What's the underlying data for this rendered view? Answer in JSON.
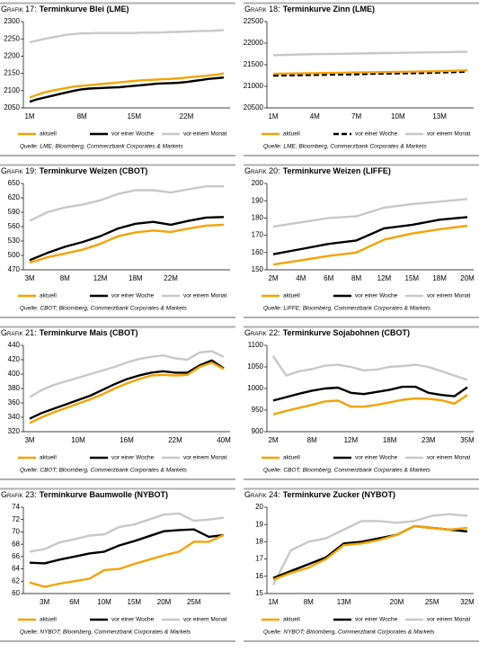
{
  "chart_data": [
    {
      "type": "line",
      "label": "Grafik 17:",
      "title": "Terminkurve Blei (LME)",
      "source": "Quelle: LME; Bloomberg, Commerzbank Corporates & Markets",
      "categories": [
        "1M",
        null,
        null,
        null,
        null,
        null,
        null,
        "8M",
        null,
        null,
        null,
        null,
        null,
        null,
        "15M",
        null,
        null,
        null,
        null,
        null,
        null,
        "22M",
        null,
        null,
        null,
        null,
        null
      ],
      "series": [
        {
          "name": "aktuell",
          "color": "#f5a300",
          "values": [
            2080,
            2088,
            2095,
            2100,
            2104,
            2108,
            2112,
            2114,
            2116,
            2118,
            2120,
            2122,
            2124,
            2126,
            2128,
            2130,
            2131,
            2132,
            2133,
            2134,
            2136,
            2138,
            2140,
            2142,
            2144,
            2146,
            2150
          ]
        },
        {
          "name": "vor einer Woche",
          "color": "#000000",
          "values": [
            2068,
            2075,
            2080,
            2085,
            2090,
            2095,
            2100,
            2104,
            2106,
            2107,
            2108,
            2109,
            2110,
            2112,
            2114,
            2116,
            2118,
            2120,
            2121,
            2122,
            2123,
            2125,
            2128,
            2131,
            2134,
            2136,
            2138
          ]
        },
        {
          "name": "vor einem Monat",
          "color": "#c8c8c8",
          "values": [
            2240,
            2245,
            2250,
            2254,
            2258,
            2262,
            2264,
            2266,
            2266,
            2267,
            2267,
            2267,
            2267,
            2267,
            2267,
            2268,
            2268,
            2268,
            2269,
            2270,
            2270,
            2271,
            2272,
            2273,
            2273,
            2274,
            2275
          ]
        }
      ],
      "ylim": [
        2050,
        2300
      ],
      "yticks": [
        2050,
        2100,
        2150,
        2200,
        2250,
        2300
      ]
    },
    {
      "type": "line",
      "label": "Grafik 18:",
      "title": "Terminkurve Zinn (LME)",
      "source": "Quelle: LME; Bloomberg, Commerzbank Corporates & Markets",
      "categories": [
        "1M",
        null,
        null,
        "4M",
        null,
        null,
        "7M",
        null,
        null,
        "10M",
        null,
        null,
        "13M",
        null,
        null
      ],
      "series": [
        {
          "name": "aktuell",
          "color": "#f5a300",
          "values": [
            21290,
            21295,
            21300,
            21305,
            21310,
            21315,
            21320,
            21325,
            21330,
            21335,
            21340,
            21345,
            21350,
            21360,
            21370
          ]
        },
        {
          "name": "vor einer Woche",
          "color": "#000000",
          "dashed": true,
          "values": [
            21250,
            21255,
            21260,
            21265,
            21270,
            21275,
            21280,
            21290,
            21295,
            21300,
            21305,
            21310,
            21320,
            21330,
            21340
          ]
        },
        {
          "name": "vor einem Monat",
          "color": "#c8c8c8",
          "values": [
            21720,
            21730,
            21740,
            21745,
            21750,
            21755,
            21760,
            21765,
            21770,
            21775,
            21780,
            21785,
            21790,
            21795,
            21800
          ]
        }
      ],
      "ylim": [
        20500,
        22500
      ],
      "yticks": [
        20500,
        21000,
        21500,
        22000,
        22500
      ]
    },
    {
      "type": "line",
      "label": "Grafik 19:",
      "title": "Terminkurve Weizen (CBOT)",
      "source": "Quelle: CBOT; Bloomberg, Commerzbank Corporates & Markets",
      "categories": [
        "3M",
        null,
        "8M",
        null,
        "12M",
        null,
        "18M",
        null,
        "22M",
        null,
        null,
        null
      ],
      "series": [
        {
          "name": "aktuell",
          "color": "#f5a300",
          "values": [
            485,
            496,
            504,
            512,
            524,
            540,
            548,
            552,
            549,
            556,
            562,
            564
          ]
        },
        {
          "name": "vor einer Woche",
          "color": "#000000",
          "values": [
            490,
            505,
            518,
            528,
            540,
            556,
            566,
            570,
            564,
            572,
            579,
            580
          ]
        },
        {
          "name": "vor einem Monat",
          "color": "#c8c8c8",
          "values": [
            572,
            590,
            600,
            606,
            615,
            628,
            636,
            636,
            631,
            638,
            644,
            644
          ]
        }
      ],
      "ylim": [
        470,
        650
      ],
      "yticks": [
        470,
        500,
        530,
        560,
        590,
        620,
        650
      ]
    },
    {
      "type": "line",
      "label": "Grafik 20:",
      "title": "Terminkurve Weizen (LIFFE)",
      "source": "Quelle: LIFFE; Bloomberg, Commerzbank Corporates & Markets",
      "categories": [
        "2M",
        "4M",
        "6M",
        "8M",
        "12M",
        "15M",
        "18M",
        "20M"
      ],
      "series": [
        {
          "name": "aktuell",
          "color": "#f5a300",
          "values": [
            153,
            155.5,
            158,
            160,
            167.5,
            171,
            173.5,
            175.5
          ]
        },
        {
          "name": "vor einer Woche",
          "color": "#000000",
          "values": [
            159,
            162,
            165,
            167,
            174,
            176,
            179,
            180.5
          ]
        },
        {
          "name": "vor einem Monat",
          "color": "#c8c8c8",
          "values": [
            175,
            177.5,
            180,
            181,
            186,
            188,
            189.5,
            191
          ]
        }
      ],
      "ylim": [
        150,
        200
      ],
      "yticks": [
        150,
        160,
        170,
        180,
        190,
        200
      ]
    },
    {
      "type": "line",
      "label": "Grafik 21:",
      "title": "Terminkurve Mais (CBOT)",
      "source": "Quelle: CBOT; Bloomberg, Commerzbank Corporates & Markets",
      "categories": [
        "3M",
        null,
        null,
        null,
        "10M",
        null,
        null,
        null,
        "16M",
        null,
        null,
        null,
        "22M",
        null,
        null,
        null,
        "40M"
      ],
      "series": [
        {
          "name": "aktuell",
          "color": "#f5a300",
          "values": [
            332,
            340,
            347,
            353,
            359,
            365,
            372,
            380,
            387,
            393,
            398,
            399,
            398,
            399,
            410,
            416,
            407
          ]
        },
        {
          "name": "vor einer Woche",
          "color": "#000000",
          "values": [
            338,
            346,
            352,
            358,
            364,
            370,
            378,
            386,
            393,
            398,
            402,
            404,
            402,
            402,
            412,
            419,
            408
          ]
        },
        {
          "name": "vor einem Monat",
          "color": "#c8c8c8",
          "values": [
            368,
            378,
            385,
            390,
            395,
            400,
            405,
            410,
            416,
            421,
            424,
            426,
            422,
            420,
            430,
            432,
            424
          ]
        }
      ],
      "ylim": [
        320,
        440
      ],
      "yticks": [
        320,
        340,
        360,
        380,
        400,
        420,
        440
      ]
    },
    {
      "type": "line",
      "label": "Grafik 22:",
      "title": "Terminkurve Sojabohnen (CBOT)",
      "source": "Quelle: CBOT; Bloomberg, Commerzbank Corporates & Markets",
      "categories": [
        "2M",
        null,
        null,
        "8M",
        null,
        null,
        "12M",
        null,
        null,
        "18M",
        null,
        null,
        "23M",
        null,
        null,
        "35M"
      ],
      "series": [
        {
          "name": "aktuell",
          "color": "#f5a300",
          "values": [
            940,
            948,
            955,
            962,
            970,
            972,
            958,
            958,
            962,
            968,
            974,
            977,
            976,
            973,
            965,
            985
          ]
        },
        {
          "name": "vor einer Woche",
          "color": "#000000",
          "values": [
            972,
            980,
            988,
            995,
            1000,
            1002,
            990,
            987,
            992,
            997,
            1004,
            1004,
            990,
            985,
            982,
            1003
          ]
        },
        {
          "name": "vor einem Monat",
          "color": "#c8c8c8",
          "values": [
            1075,
            1030,
            1040,
            1045,
            1053,
            1055,
            1050,
            1042,
            1044,
            1050,
            1052,
            1055,
            1050,
            1040,
            1030,
            1020
          ]
        }
      ],
      "ylim": [
        900,
        1100
      ],
      "yticks": [
        900,
        950,
        1000,
        1050,
        1100
      ]
    },
    {
      "type": "line",
      "label": "Grafik 23:",
      "title": "Terminkurve Baumwolle (NYBOT)",
      "source": "Quelle: NYBOT; Bloomberg, Commerzbank Corporates & Markets",
      "categories": [
        null,
        "3M",
        null,
        "6M",
        null,
        "10M",
        null,
        "15M",
        null,
        "20M",
        null,
        "25M",
        null,
        null
      ],
      "series": [
        {
          "name": "aktuell",
          "color": "#f5a300",
          "values": [
            61.8,
            61.1,
            61.6,
            62.0,
            62.4,
            63.8,
            64.0,
            64.8,
            65.5,
            66.2,
            66.8,
            68.4,
            68.4,
            69.5
          ]
        },
        {
          "name": "vor einer Woche",
          "color": "#000000",
          "values": [
            65.0,
            64.9,
            65.5,
            66.0,
            66.5,
            66.8,
            67.8,
            68.5,
            69.3,
            70.1,
            70.3,
            70.4,
            69.2,
            69.5
          ]
        },
        {
          "name": "vor einem Monat",
          "color": "#c8c8c8",
          "values": [
            66.8,
            67.2,
            68.3,
            68.8,
            69.4,
            69.6,
            70.8,
            71.2,
            72.0,
            72.8,
            73.0,
            71.8,
            72.0,
            72.3
          ]
        }
      ],
      "ylim": [
        60,
        74
      ],
      "yticks": [
        60,
        62,
        64,
        66,
        68,
        70,
        72,
        74
      ]
    },
    {
      "type": "line",
      "label": "Grafik 24:",
      "title": "Terminkurve Zucker (NYBOT)",
      "source": "Quelle: NYBOT; Bloomberg, Commerzbank Corporates & Markets",
      "categories": [
        "1M",
        null,
        "8M",
        null,
        "13M",
        null,
        null,
        "20M",
        null,
        "25M",
        null,
        "32M"
      ],
      "series": [
        {
          "name": "aktuell",
          "color": "#f5a300",
          "values": [
            15.8,
            16.2,
            16.5,
            17.0,
            17.8,
            17.9,
            18.1,
            18.4,
            18.9,
            18.8,
            18.7,
            18.8
          ]
        },
        {
          "name": "vor einer Woche",
          "color": "#000000",
          "values": [
            15.9,
            16.3,
            16.7,
            17.1,
            17.9,
            18.0,
            18.2,
            18.4,
            18.9,
            18.8,
            18.7,
            18.6
          ]
        },
        {
          "name": "vor einem Monat",
          "color": "#c8c8c8",
          "values": [
            15.5,
            17.5,
            18.0,
            18.2,
            18.7,
            19.2,
            19.2,
            19.1,
            19.2,
            19.5,
            19.6,
            19.5
          ]
        }
      ],
      "ylim": [
        15,
        20
      ],
      "yticks": [
        15,
        16,
        17,
        18,
        19,
        20
      ]
    }
  ]
}
